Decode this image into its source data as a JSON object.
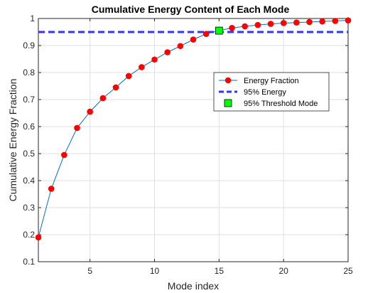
{
  "chart_data": {
    "type": "line",
    "title": "Cumulative Energy Content of Each Mode",
    "xlabel": "Mode index",
    "ylabel": "Cumulative Energy Fraction",
    "xlim": [
      1,
      25
    ],
    "ylim": [
      0.1,
      1.0
    ],
    "xticks": [
      5,
      10,
      15,
      20,
      25
    ],
    "yticks": [
      0.1,
      0.2,
      0.3,
      0.4,
      0.5,
      0.6,
      0.7,
      0.8,
      0.9,
      1.0
    ],
    "xtick_labels": [
      "5",
      "10",
      "15",
      "20",
      "25"
    ],
    "ytick_labels": [
      "0.1",
      "0.2",
      "0.3",
      "0.4",
      "0.5",
      "0.6",
      "0.7",
      "0.8",
      "0.9",
      "1"
    ],
    "grid": true,
    "legend_position": "inside right",
    "series": [
      {
        "name": "Energy Fraction",
        "style": "line-with-circle-markers",
        "line_color": "#0072BD",
        "marker_color": "#FF0000",
        "x": [
          1,
          2,
          3,
          4,
          5,
          6,
          7,
          8,
          9,
          10,
          11,
          12,
          13,
          14,
          15,
          16,
          17,
          18,
          19,
          20,
          21,
          22,
          23,
          24,
          25
        ],
        "y": [
          0.19,
          0.37,
          0.495,
          0.595,
          0.655,
          0.705,
          0.745,
          0.787,
          0.82,
          0.848,
          0.875,
          0.898,
          0.922,
          0.943,
          0.955,
          0.965,
          0.971,
          0.976,
          0.98,
          0.983,
          0.985,
          0.987,
          0.989,
          0.991,
          0.993
        ]
      },
      {
        "name": "95% Energy",
        "style": "dashed-line",
        "color": "#3333FF",
        "y": 0.95
      },
      {
        "name": "95% Threshold Mode",
        "style": "square-marker",
        "color": "#00FF00",
        "x": [
          15
        ],
        "y": [
          0.955
        ]
      }
    ]
  }
}
